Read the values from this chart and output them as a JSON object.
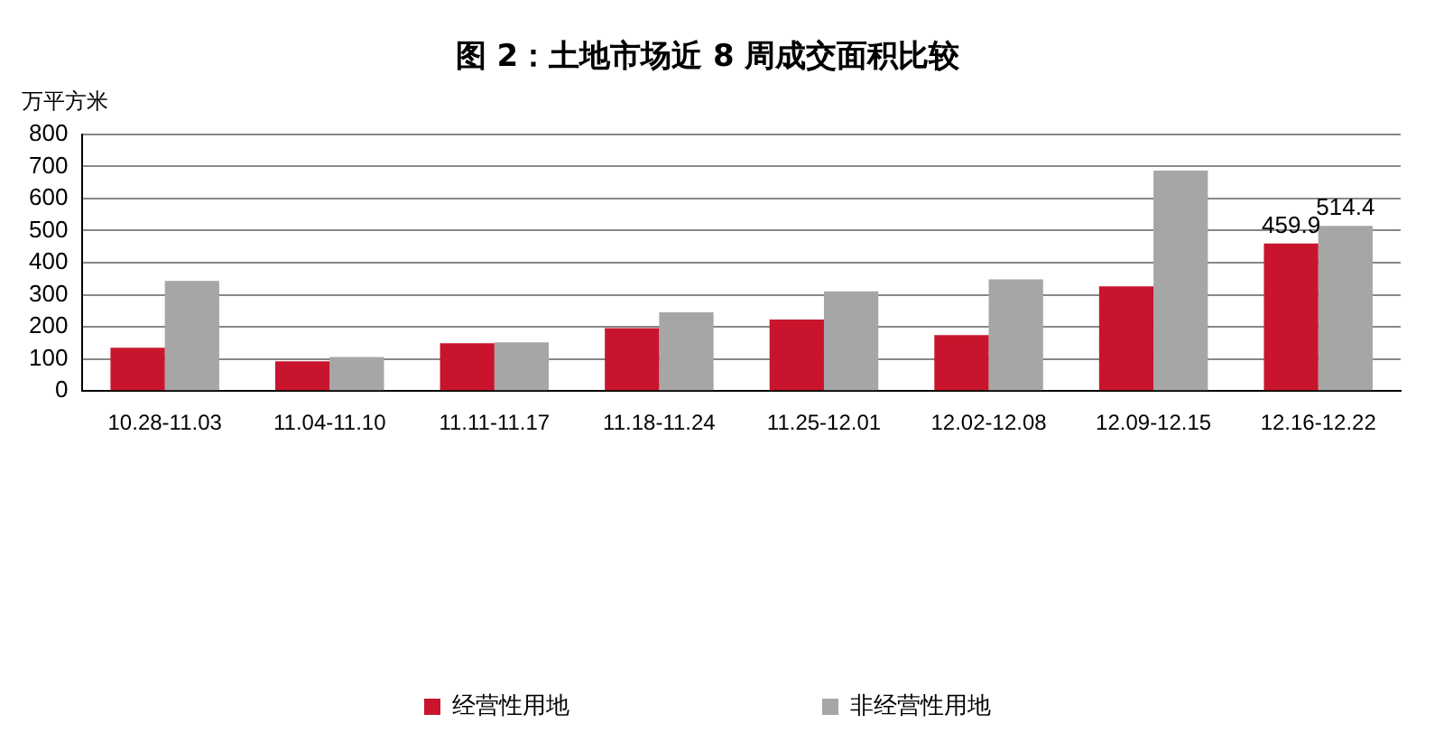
{
  "chart_data": {
    "type": "bar",
    "title": "图 2：土地市场近 8 周成交面积比较",
    "ylabel": "万平方米",
    "categories": [
      "10.28-11.03",
      "11.04-11.10",
      "11.11-11.17",
      "11.18-11.24",
      "11.25-12.01",
      "12.02-12.08",
      "12.09-12.15",
      "12.16-12.22"
    ],
    "series": [
      {
        "name": "经营性用地",
        "color": "#c8152d",
        "values": [
          135,
          93,
          149,
          196,
          223,
          174,
          326,
          459.9
        ],
        "value_labels": [
          null,
          null,
          null,
          null,
          null,
          null,
          null,
          "459.9"
        ]
      },
      {
        "name": "非经营性用地",
        "color": "#a6a6a6",
        "values": [
          343,
          106,
          152,
          245,
          311,
          348,
          687,
          514.4
        ],
        "value_labels": [
          null,
          null,
          null,
          null,
          null,
          null,
          null,
          "514.4"
        ]
      }
    ],
    "ylim": [
      0,
      800
    ],
    "yticks": [
      0,
      100,
      200,
      300,
      400,
      500,
      600,
      700,
      800
    ],
    "grid": "y",
    "legend": "bottom"
  }
}
